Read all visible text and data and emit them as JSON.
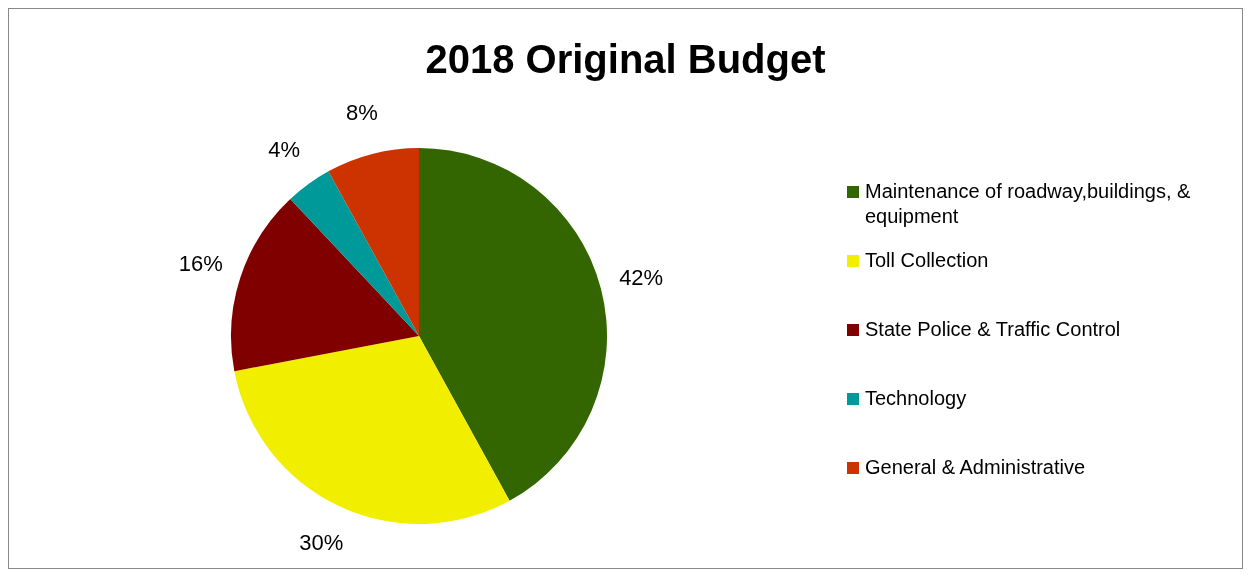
{
  "chart_data": {
    "type": "pie",
    "title": "2018 Original Budget",
    "categories": [
      "Maintenance of roadway,buildings, & equipment",
      "Toll Collection",
      "State Police & Traffic Control",
      "Technology",
      "General & Administrative"
    ],
    "values": [
      42,
      30,
      16,
      4,
      8
    ],
    "colors": [
      "#336600",
      "#f2ee00",
      "#800000",
      "#009999",
      "#cc3300"
    ],
    "value_labels": [
      "42%",
      "30%",
      "16%",
      "4%",
      "8%"
    ],
    "legend": "right"
  }
}
